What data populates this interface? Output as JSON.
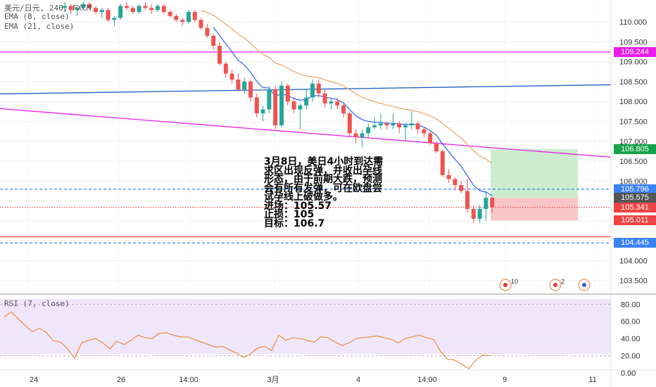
{
  "header": {
    "symbol_line": "美元/日元, 240, FXCM",
    "ema8": "EMA (8, close)",
    "ema21": "EMA (21, close)"
  },
  "rsi_label": "RSI (7, close)",
  "annotation": {
    "lines": [
      "3月8日，美日4小时到达需",
      "求区出现反弹，并收出孕线",
      "形态，由于前期大跌，预测",
      "会有所有发弹，可在欧盘尝",
      "试孕线上破做多。",
      "进场：105.57",
      "止损：105",
      "目标：106.7"
    ]
  },
  "event_badges": [
    "10",
    "2"
  ],
  "price_tags": [
    {
      "value": "109.244",
      "price": 109.244,
      "color": "#e91ee9"
    },
    {
      "value": "106.805",
      "price": 106.805,
      "color": "#16a34a"
    },
    {
      "value": "105.796",
      "price": 105.796,
      "color": "#3b82f6"
    },
    {
      "value": "105.575",
      "price": 105.575,
      "color": "#555555"
    },
    {
      "value": "105.341",
      "price": 105.341,
      "color": "#ef4444"
    },
    {
      "value": "105.011",
      "price": 105.011,
      "color": "#ef4444"
    },
    {
      "value": "104.445",
      "price": 104.445,
      "color": "#3b82f6"
    }
  ],
  "chart_data": {
    "type": "candlestick",
    "price_axis": {
      "ticks": [
        "110.000",
        "109.500",
        "109.000",
        "108.500",
        "108.000",
        "107.500",
        "107.000",
        "106.500",
        "106.000",
        "105.500",
        "105.000",
        "104.500",
        "104.000",
        "103.500"
      ],
      "ylim": [
        103.3,
        110.55
      ]
    },
    "rsi_axis": {
      "ticks": [
        "80.00",
        "60.00",
        "40.00",
        "20.00",
        "0.00"
      ],
      "ylim": [
        0,
        86
      ]
    },
    "x_ticks": [
      "24",
      "26",
      "14:00",
      "3月",
      "4",
      "14:00",
      "9",
      "11"
    ],
    "candles": [
      [
        110.35,
        110.5,
        110.25,
        110.4
      ],
      [
        110.4,
        110.45,
        110.2,
        110.3
      ],
      [
        110.3,
        110.4,
        110.15,
        110.35
      ],
      [
        110.35,
        110.5,
        110.3,
        110.45
      ],
      [
        110.45,
        110.5,
        110.3,
        110.35
      ],
      [
        110.35,
        110.4,
        110.2,
        110.25
      ],
      [
        110.25,
        110.35,
        110.1,
        110.3
      ],
      [
        110.3,
        110.35,
        110.0,
        110.05
      ],
      [
        110.05,
        110.15,
        109.9,
        110.1
      ],
      [
        110.1,
        110.45,
        110.05,
        110.4
      ],
      [
        110.4,
        110.5,
        110.3,
        110.35
      ],
      [
        110.35,
        110.4,
        110.2,
        110.25
      ],
      [
        110.25,
        110.45,
        110.2,
        110.4
      ],
      [
        110.4,
        110.5,
        110.3,
        110.35
      ],
      [
        110.35,
        110.45,
        110.2,
        110.3
      ],
      [
        110.3,
        110.45,
        110.25,
        110.4
      ],
      [
        110.4,
        110.45,
        110.2,
        110.25
      ],
      [
        110.25,
        110.3,
        110.1,
        110.15
      ],
      [
        110.15,
        110.2,
        110.0,
        110.05
      ],
      [
        110.05,
        110.1,
        109.9,
        110.0
      ],
      [
        110.0,
        110.3,
        109.95,
        110.25
      ],
      [
        110.25,
        110.3,
        110.0,
        110.05
      ],
      [
        110.05,
        110.1,
        109.8,
        109.85
      ],
      [
        109.85,
        109.95,
        109.6,
        109.65
      ],
      [
        109.65,
        109.7,
        109.3,
        109.4
      ],
      [
        109.4,
        109.5,
        108.9,
        108.95
      ],
      [
        108.95,
        109.0,
        108.6,
        108.7
      ],
      [
        108.7,
        108.8,
        108.45,
        108.55
      ],
      [
        108.55,
        108.7,
        108.25,
        108.3
      ],
      [
        108.3,
        108.6,
        108.2,
        108.5
      ],
      [
        108.5,
        108.55,
        108.0,
        108.1
      ],
      [
        108.1,
        108.2,
        107.6,
        107.7
      ],
      [
        107.7,
        107.9,
        107.5,
        107.8
      ],
      [
        107.8,
        108.4,
        107.7,
        108.3
      ],
      [
        108.3,
        108.4,
        107.3,
        107.4
      ],
      [
        107.4,
        108.5,
        107.35,
        108.4
      ],
      [
        108.4,
        108.45,
        107.9,
        108.0
      ],
      [
        108.0,
        108.1,
        107.7,
        107.8
      ],
      [
        107.8,
        107.95,
        107.3,
        107.9
      ],
      [
        107.9,
        108.3,
        107.8,
        108.1
      ],
      [
        108.1,
        108.55,
        108.0,
        108.45
      ],
      [
        108.45,
        108.55,
        108.1,
        108.2
      ],
      [
        108.2,
        108.3,
        107.85,
        107.95
      ],
      [
        107.95,
        108.1,
        107.8,
        108.0
      ],
      [
        108.0,
        108.1,
        107.8,
        107.9
      ],
      [
        107.9,
        107.95,
        107.6,
        107.7
      ],
      [
        107.7,
        107.75,
        107.1,
        107.2
      ],
      [
        107.2,
        107.3,
        106.95,
        107.1
      ],
      [
        107.1,
        107.3,
        106.85,
        107.2
      ],
      [
        107.2,
        107.45,
        107.1,
        107.35
      ],
      [
        107.35,
        107.6,
        107.3,
        107.4
      ],
      [
        107.4,
        107.7,
        107.3,
        107.45
      ],
      [
        107.45,
        107.5,
        107.3,
        107.4
      ],
      [
        107.4,
        107.7,
        107.3,
        107.45
      ],
      [
        107.45,
        107.5,
        107.2,
        107.35
      ],
      [
        107.35,
        107.45,
        107.0,
        107.4
      ],
      [
        107.4,
        107.75,
        107.3,
        107.45
      ],
      [
        107.45,
        107.5,
        107.2,
        107.3
      ],
      [
        107.3,
        107.35,
        107.1,
        107.2
      ],
      [
        107.2,
        107.25,
        106.9,
        106.95
      ],
      [
        106.95,
        107.0,
        106.7,
        106.75
      ],
      [
        106.75,
        106.8,
        106.1,
        106.15
      ],
      [
        106.15,
        106.3,
        105.95,
        106.05
      ],
      [
        106.05,
        106.1,
        105.8,
        105.9
      ],
      [
        105.9,
        106.0,
        105.7,
        105.75
      ],
      [
        105.75,
        106.05,
        105.2,
        105.3
      ],
      [
        105.3,
        105.4,
        104.95,
        105.05
      ],
      [
        105.05,
        105.4,
        104.95,
        105.3
      ],
      [
        105.3,
        105.75,
        105.0,
        105.58
      ],
      [
        105.58,
        105.62,
        105.2,
        105.35
      ]
    ],
    "trendlines": [
      {
        "color": "#1f5fbf",
        "from": {
          "x": 0,
          "price": 108.19
        },
        "to": {
          "x": 868,
          "price": 108.42
        }
      },
      {
        "color": "#e91ee9",
        "from": {
          "x": 0,
          "price": 107.82
        },
        "to": {
          "x": 868,
          "price": 106.6
        }
      }
    ],
    "hlines": [
      {
        "price": 109.244,
        "color": "#e91ee9",
        "style": "solid"
      },
      {
        "price": 105.796,
        "color": "#3b82f6",
        "style": "dashed"
      },
      {
        "price": 105.341,
        "color": "#ef4444",
        "style": "dotted"
      },
      {
        "price": 104.6,
        "color": "#ef4444",
        "style": "solid"
      },
      {
        "price": 104.445,
        "color": "#3b82f6",
        "style": "dashed"
      }
    ],
    "position": {
      "entry": 105.575,
      "target": 106.805,
      "stop": 105.011
    },
    "rsi": [
      65,
      71,
      63,
      55,
      48,
      52,
      47,
      37,
      36,
      28,
      17,
      35,
      38,
      40,
      35,
      28,
      37,
      33,
      38,
      44,
      41,
      40,
      46,
      47,
      44,
      42,
      42,
      39,
      36,
      33,
      30,
      31,
      27,
      23,
      18,
      22,
      29,
      31,
      26,
      44,
      38,
      41,
      40,
      38,
      36,
      42,
      41,
      36,
      32,
      35,
      40,
      41,
      42,
      43,
      41,
      39,
      35,
      40,
      42,
      44,
      41,
      39,
      25,
      16,
      15,
      10,
      5,
      15,
      21,
      20
    ]
  }
}
